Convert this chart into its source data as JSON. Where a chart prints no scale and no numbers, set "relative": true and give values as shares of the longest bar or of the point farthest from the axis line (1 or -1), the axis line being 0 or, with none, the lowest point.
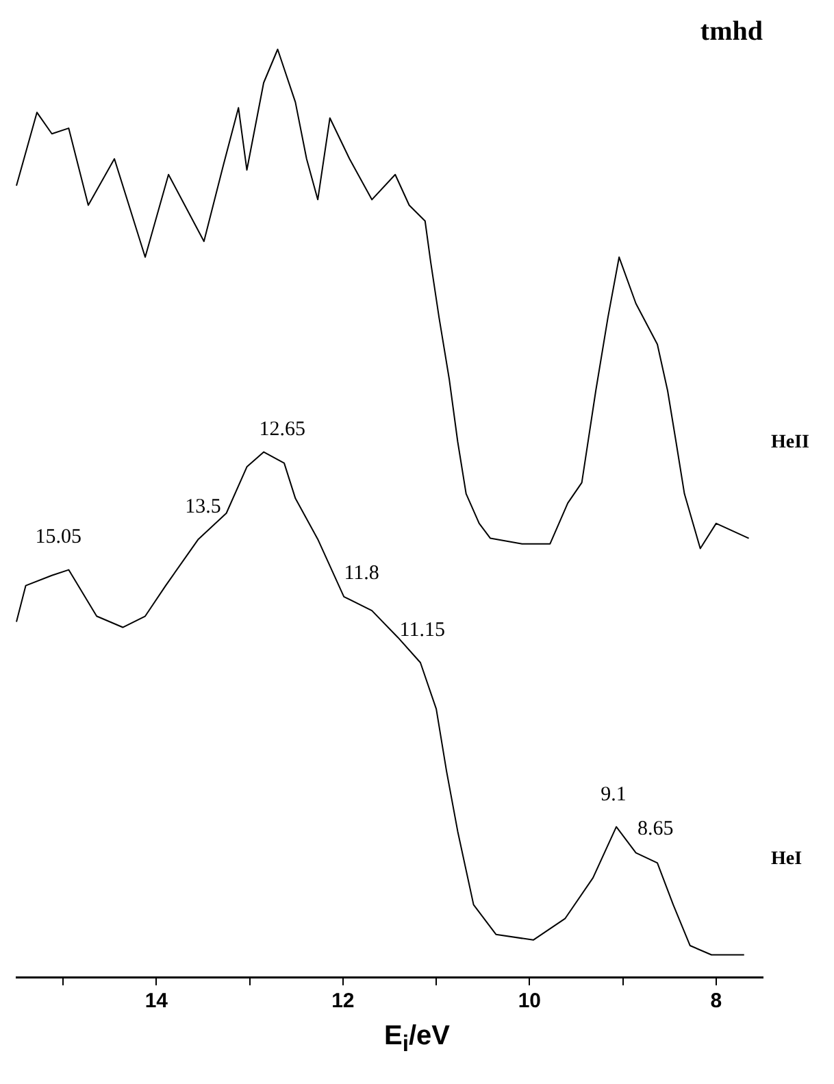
{
  "chart_data": {
    "type": "line",
    "title": "tmhd",
    "xlabel": "E$_{i}$/eV",
    "relative": true,
    "x": [
      15.5,
      15.28,
      15.12,
      14.94,
      14.73,
      14.45,
      14.12,
      13.87,
      13.49,
      13.28,
      13.12,
      13.03,
      12.85,
      12.7,
      12.51,
      12.39,
      12.27,
      12.14,
      11.93,
      11.69,
      11.44,
      11.29,
      11.12,
      11.06,
      10.97,
      10.86,
      10.77,
      10.68,
      10.54,
      10.42,
      10.08,
      9.78,
      9.59,
      9.44,
      9.29,
      9.16,
      9.04,
      8.86,
      8.63,
      8.52,
      8.43,
      8.34,
      8.17,
      8.0,
      7.65
    ],
    "series": [
      {
        "name": "HeII",
        "color": "#000000",
        "values": [
          0.853,
          0.932,
          0.909,
          0.915,
          0.832,
          0.882,
          0.776,
          0.865,
          0.793,
          0.876,
          0.937,
          0.87,
          0.964,
          1,
          0.943,
          0.882,
          0.838,
          0.926,
          0.882,
          0.838,
          0.865,
          0.832,
          0.815,
          0.771,
          0.711,
          0.644,
          0.577,
          0.521,
          0.489,
          0.473,
          0.467,
          0.467,
          0.511,
          0.533,
          0.632,
          0.711,
          0.776,
          0.726,
          0.682,
          0.632,
          0.577,
          0.521,
          0.462,
          0.489,
          0.473
        ]
      },
      {
        "name": "HeI",
        "color": "#000000",
        "x": [
          15.5,
          15.4,
          15.12,
          14.94,
          14.64,
          14.36,
          14.12,
          13.9,
          13.55,
          13.25,
          13.03,
          12.85,
          12.63,
          12.51,
          12.27,
          11.99,
          11.69,
          11.41,
          11.17,
          11.0,
          10.89,
          10.77,
          10.6,
          10.36,
          9.96,
          9.62,
          9.32,
          9.07,
          8.86,
          8.63,
          8.46,
          8.28,
          8.05,
          7.7
        ],
        "values": [
          0.383,
          0.422,
          0.433,
          0.439,
          0.389,
          0.377,
          0.389,
          0.422,
          0.472,
          0.5,
          0.55,
          0.566,
          0.554,
          0.516,
          0.472,
          0.41,
          0.395,
          0.366,
          0.339,
          0.289,
          0.222,
          0.157,
          0.078,
          0.046,
          0.04,
          0.063,
          0.107,
          0.162,
          0.134,
          0.123,
          0.078,
          0.034,
          0.024,
          0.024
        ]
      }
    ],
    "xlim": [
      15.5,
      7.5
    ],
    "xticks": [
      {
        "value": 15,
        "label": null
      },
      14,
      {
        "value": 13,
        "label": null
      },
      12,
      {
        "value": 11,
        "label": null
      },
      10,
      {
        "value": 9,
        "label": null
      },
      8
    ],
    "annotations": [
      {
        "text": "15.05",
        "x": 15.05,
        "y": 0.439
      },
      {
        "text": "13.5",
        "x": 13.5,
        "y": 0.472
      },
      {
        "text": "12.65",
        "x": 12.65,
        "y": 0.555
      },
      {
        "text": "11.8",
        "x": 11.8,
        "y": 0.4
      },
      {
        "text": "11.15",
        "x": 11.15,
        "y": 0.339
      },
      {
        "text": "9.1",
        "x": 9.1,
        "y": 0.162
      },
      {
        "text": "8.65",
        "x": 8.65,
        "y": 0.125
      }
    ],
    "grid": false,
    "legend": false,
    "marker": "none",
    "line_style": "solid"
  }
}
